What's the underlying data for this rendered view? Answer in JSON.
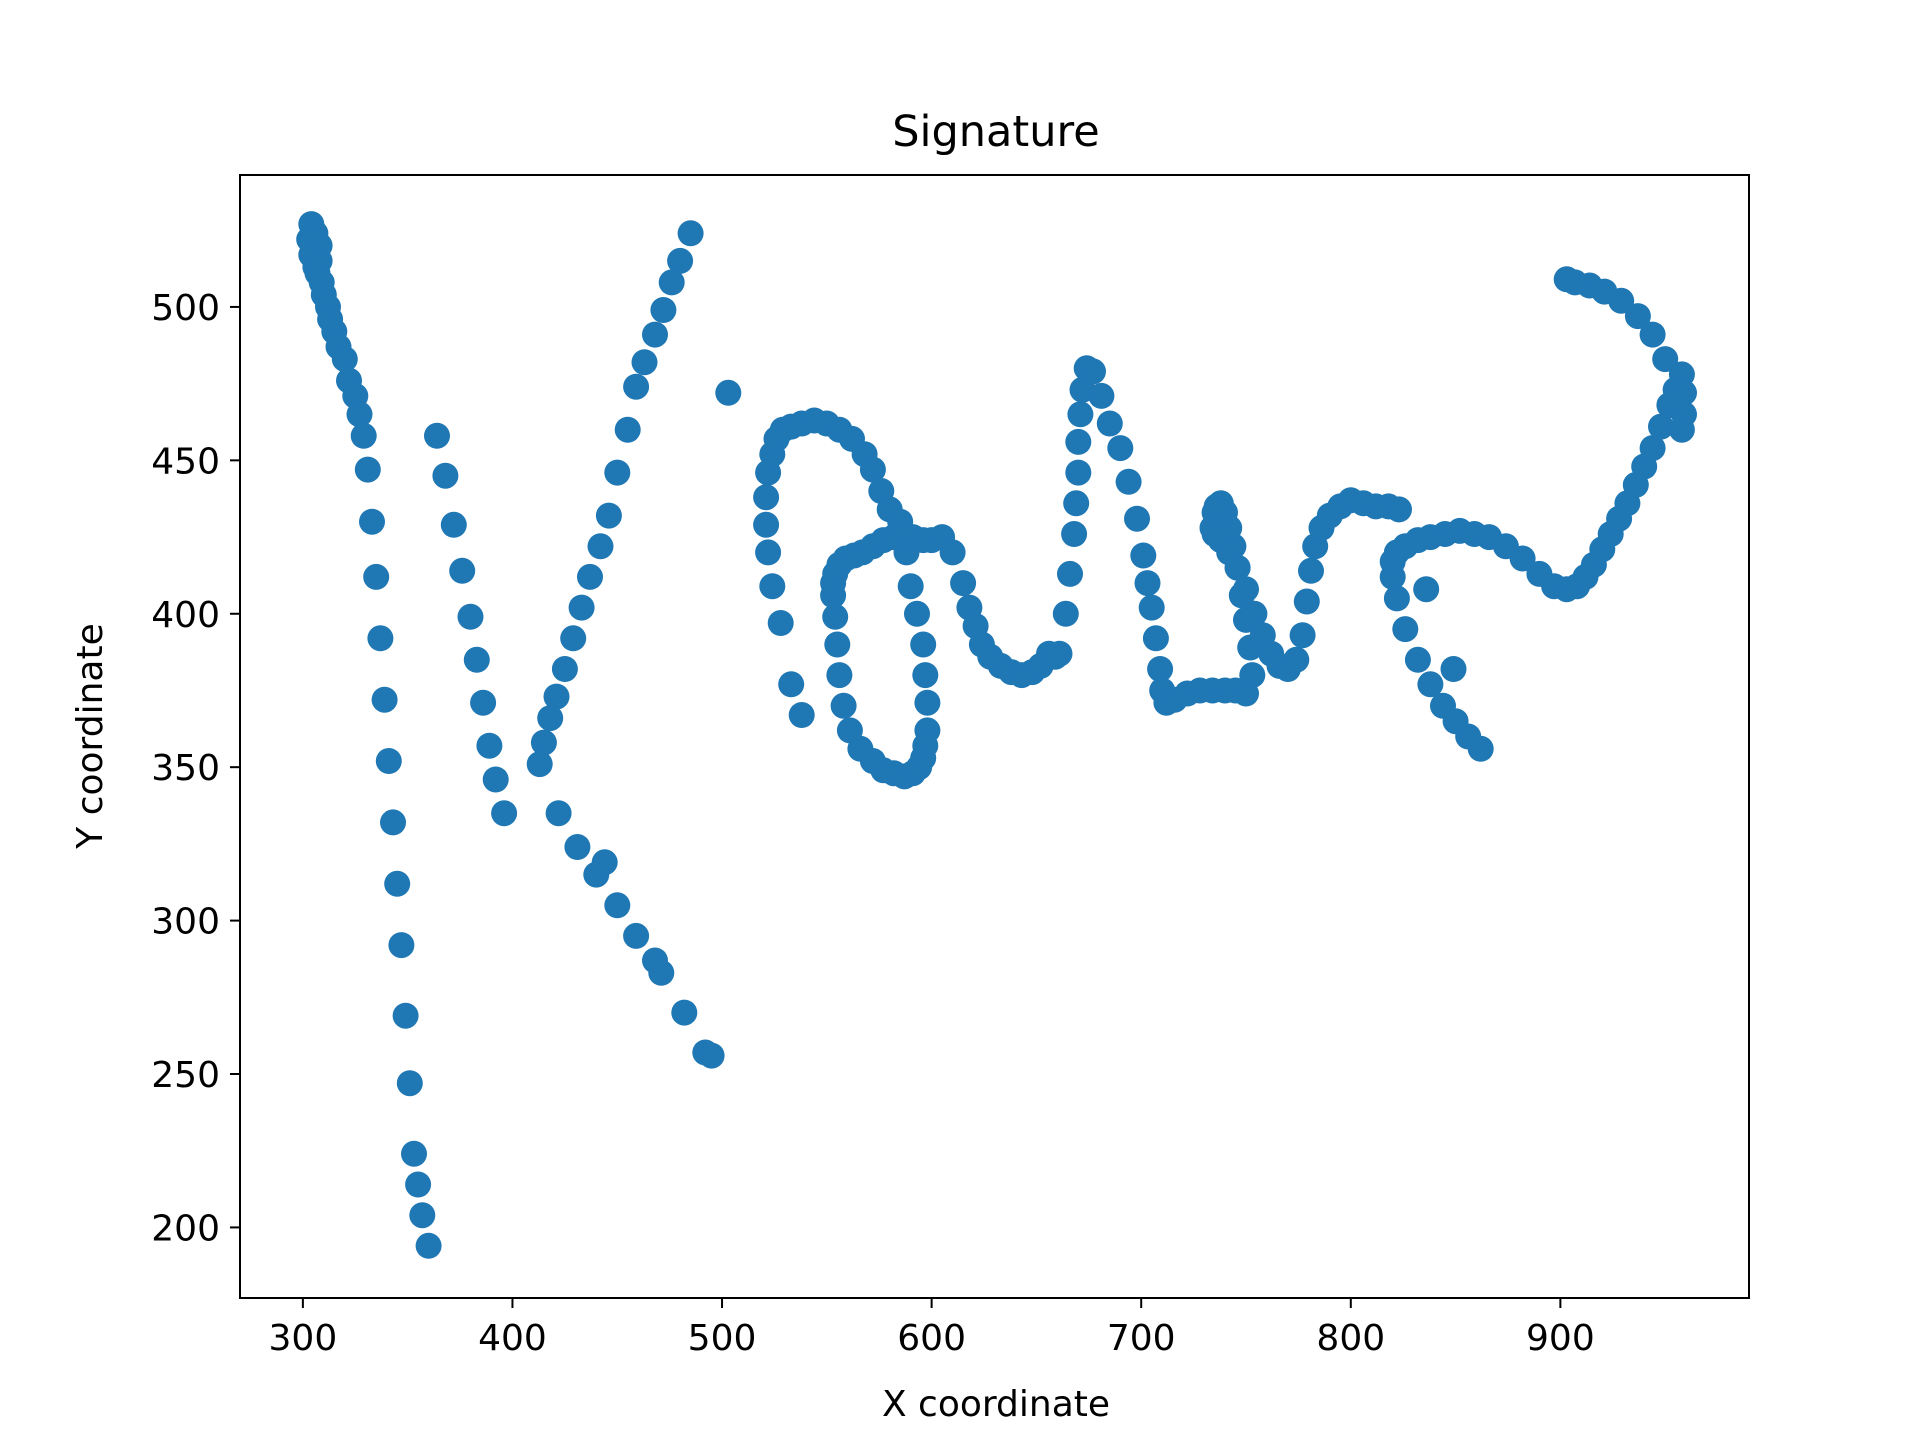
{
  "chart_data": {
    "type": "scatter",
    "title": "Signature",
    "xlabel": "X coordinate",
    "ylabel": "Y coordinate",
    "xlim": [
      270,
      990
    ],
    "ylim": [
      177,
      543
    ],
    "xticks": [
      300,
      400,
      500,
      600,
      700,
      800,
      900
    ],
    "yticks": [
      200,
      250,
      300,
      350,
      400,
      450,
      500
    ],
    "grid": false,
    "legend": "none",
    "marker_color": "#1f77b4",
    "series": [
      {
        "x": [
          304,
          306,
          308,
          305,
          303,
          304,
          306,
          307,
          308,
          309,
          310,
          312,
          313,
          315,
          317,
          320,
          322,
          325,
          327,
          329,
          331,
          333,
          335,
          337,
          339,
          341,
          343,
          345,
          347,
          349,
          351,
          353,
          355,
          357,
          360,
          364,
          368,
          372,
          376,
          380,
          383,
          386,
          389,
          392,
          396
        ],
        "y": [
          527,
          524,
          520,
          523,
          522,
          517,
          513,
          511,
          515,
          508,
          504,
          500,
          496,
          492,
          487,
          483,
          476,
          471,
          465,
          458,
          447,
          430,
          412,
          392,
          372,
          352,
          332,
          312,
          292,
          269,
          247,
          224,
          214,
          204,
          194,
          458,
          445,
          429,
          414,
          399,
          385,
          371,
          357,
          346,
          335
        ]
      },
      {
        "x": [
          485,
          480,
          476,
          472,
          468,
          463,
          459,
          455,
          450,
          446,
          442,
          437,
          433,
          429,
          425,
          421,
          418,
          415,
          413,
          422,
          431,
          440,
          444,
          450,
          459,
          468,
          471,
          482,
          492,
          495,
          503
        ],
        "y": [
          524,
          515,
          508,
          499,
          491,
          482,
          474,
          460,
          446,
          432,
          422,
          412,
          402,
          392,
          382,
          373,
          366,
          358,
          351,
          335,
          324,
          315,
          319,
          305,
          295,
          287,
          283,
          270,
          257,
          256,
          472
        ]
      },
      {
        "x": [
          538,
          533,
          528,
          524,
          522,
          521,
          521,
          522,
          524,
          526,
          529,
          533,
          538,
          544,
          550,
          556,
          562,
          568,
          572,
          576,
          580,
          585,
          588,
          590,
          593,
          596,
          597,
          598,
          598,
          597,
          596,
          594,
          591,
          587,
          582,
          577,
          572,
          566,
          561,
          558,
          556,
          555,
          554,
          553,
          553,
          554,
          556,
          559,
          563,
          567,
          572,
          577,
          582,
          587,
          591,
          596,
          600,
          605,
          610,
          615,
          618,
          621,
          624,
          628,
          633,
          638,
          643,
          648,
          652,
          656,
          659,
          661
        ],
        "y": [
          367,
          377,
          397,
          409,
          420,
          429,
          438,
          446,
          452,
          457,
          460,
          461,
          462,
          463,
          462,
          460,
          457,
          452,
          447,
          440,
          434,
          430,
          420,
          409,
          400,
          390,
          380,
          371,
          362,
          357,
          353,
          350,
          348,
          347,
          348,
          349,
          352,
          356,
          362,
          370,
          380,
          390,
          399,
          406,
          410,
          413,
          416,
          418,
          419,
          420,
          422,
          424,
          425,
          426,
          425,
          424,
          424,
          425,
          420,
          410,
          402,
          396,
          390,
          386,
          383,
          381,
          380,
          381,
          383,
          387,
          386,
          387
        ]
      },
      {
        "x": [
          664,
          666,
          668,
          669,
          670,
          670,
          671,
          672,
          674,
          677,
          681,
          685,
          690,
          694,
          698,
          701,
          703,
          705,
          707,
          709,
          710,
          712,
          716,
          722,
          728,
          734,
          740,
          745,
          750,
          753,
          752,
          750,
          748,
          746,
          744,
          742,
          740,
          738,
          736,
          735,
          734,
          735,
          738,
          742,
          746,
          750,
          754,
          758,
          762,
          766,
          770,
          774,
          777,
          779,
          781,
          783,
          786,
          790,
          795,
          800,
          806,
          812,
          818,
          823
        ],
        "y": [
          400,
          413,
          426,
          436,
          446,
          456,
          465,
          473,
          480,
          479,
          471,
          462,
          454,
          443,
          431,
          419,
          410,
          402,
          392,
          382,
          375,
          371,
          372,
          374,
          375,
          375,
          375,
          375,
          374,
          380,
          389,
          398,
          406,
          415,
          422,
          428,
          433,
          436,
          435,
          433,
          428,
          426,
          424,
          420,
          415,
          408,
          400,
          393,
          387,
          383,
          382,
          385,
          393,
          404,
          414,
          422,
          428,
          432,
          435,
          437,
          436,
          435,
          435,
          434
        ]
      },
      {
        "x": [
          862,
          856,
          850,
          844,
          838,
          832,
          826,
          822,
          820,
          820,
          822,
          826,
          832,
          838,
          845,
          852,
          859,
          866,
          874,
          882,
          890,
          897,
          903,
          908,
          912,
          916,
          920,
          924,
          928,
          932,
          936,
          940,
          944,
          948,
          952,
          955,
          958,
          959,
          959,
          958,
          955,
          950,
          944,
          937,
          929,
          921,
          914,
          907,
          903,
          836,
          849
        ],
        "y": [
          356,
          360,
          365,
          370,
          377,
          385,
          395,
          405,
          412,
          417,
          420,
          422,
          424,
          425,
          426,
          427,
          426,
          425,
          422,
          418,
          413,
          409,
          408,
          409,
          412,
          416,
          421,
          426,
          431,
          436,
          442,
          448,
          454,
          461,
          468,
          473,
          478,
          472,
          465,
          460,
          470,
          483,
          491,
          497,
          502,
          505,
          507,
          508,
          509,
          408,
          382
        ]
      }
    ]
  }
}
